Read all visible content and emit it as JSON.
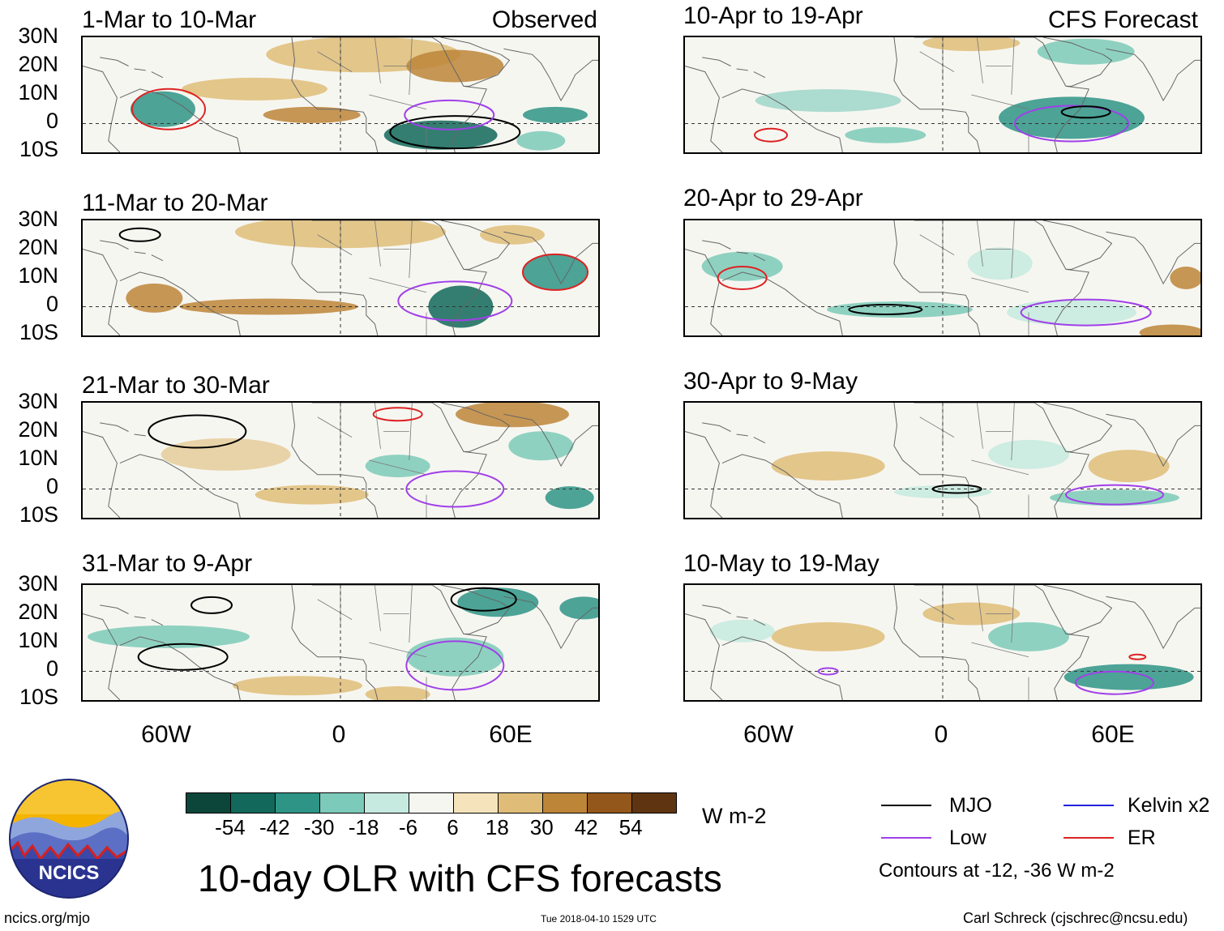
{
  "header": {
    "left_label": "Observed",
    "right_label": "CFS Forecast"
  },
  "panels": {
    "left": [
      {
        "date": "1-Mar to 10-Mar"
      },
      {
        "date": "11-Mar to 20-Mar"
      },
      {
        "date": "21-Mar to 30-Mar"
      },
      {
        "date": "31-Mar to 9-Apr"
      }
    ],
    "right": [
      {
        "date": "10-Apr to 19-Apr"
      },
      {
        "date": "20-Apr to 29-Apr"
      },
      {
        "date": "30-Apr to 9-May"
      },
      {
        "date": "10-May to 19-May"
      }
    ]
  },
  "lat_ticks": [
    "30N",
    "20N",
    "10N",
    "0",
    "10S"
  ],
  "lon_ticks": [
    "60W",
    "0",
    "60E"
  ],
  "colorbar": {
    "labels": [
      "-54",
      "-42",
      "-30",
      "-18",
      "-6",
      "6",
      "18",
      "30",
      "42",
      "54"
    ],
    "colors": [
      "#0c463a",
      "#12685a",
      "#2e9486",
      "#7ccab9",
      "#c6eadf",
      "#f6f6f1",
      "#f5e3bb",
      "#dfbd78",
      "#bd8538",
      "#93571b",
      "#5e3510"
    ],
    "units": "W m-2"
  },
  "title": "10-day OLR with CFS forecasts",
  "legend": {
    "items": [
      {
        "label": "MJO",
        "color": "#000000"
      },
      {
        "label": "Kelvin x2",
        "color": "#2222dd"
      },
      {
        "label": "Low",
        "color": "#a040e8"
      },
      {
        "label": "ER",
        "color": "#dd2222"
      }
    ],
    "note": "Contours at -12, -36 W m-2"
  },
  "logo": {
    "text": "NCICS"
  },
  "footer": {
    "url": "ncics.org/mjo",
    "timestamp": "Tue 2018-04-10 1529 UTC",
    "credit": "Carl Schreck (cjschrec@ncsu.edu)"
  }
}
